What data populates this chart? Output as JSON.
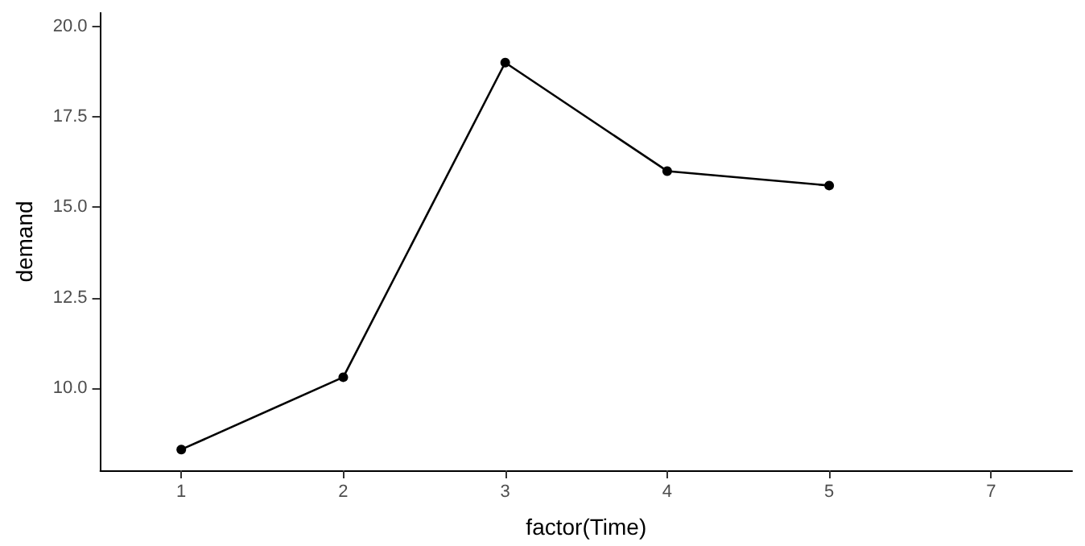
{
  "chart_data": {
    "type": "line",
    "xlabel": "factor(Time)",
    "ylabel": "demand",
    "categories": [
      "1",
      "2",
      "3",
      "4",
      "5",
      "7"
    ],
    "series": [
      {
        "color": "#000000",
        "values": [
          8.3,
          10.3,
          19.0,
          16.0,
          15.6,
          null
        ]
      }
    ],
    "ylim": [
      7.725,
      20.375
    ],
    "yticks": [
      {
        "value": 10,
        "label": "10.0"
      },
      {
        "value": 12.5,
        "label": "12.5"
      },
      {
        "value": 15,
        "label": "15.0"
      },
      {
        "value": 17.5,
        "label": "17.5"
      },
      {
        "value": 20,
        "label": "20.0"
      }
    ],
    "grid": false,
    "marker": "circle",
    "line_style": "solid"
  }
}
